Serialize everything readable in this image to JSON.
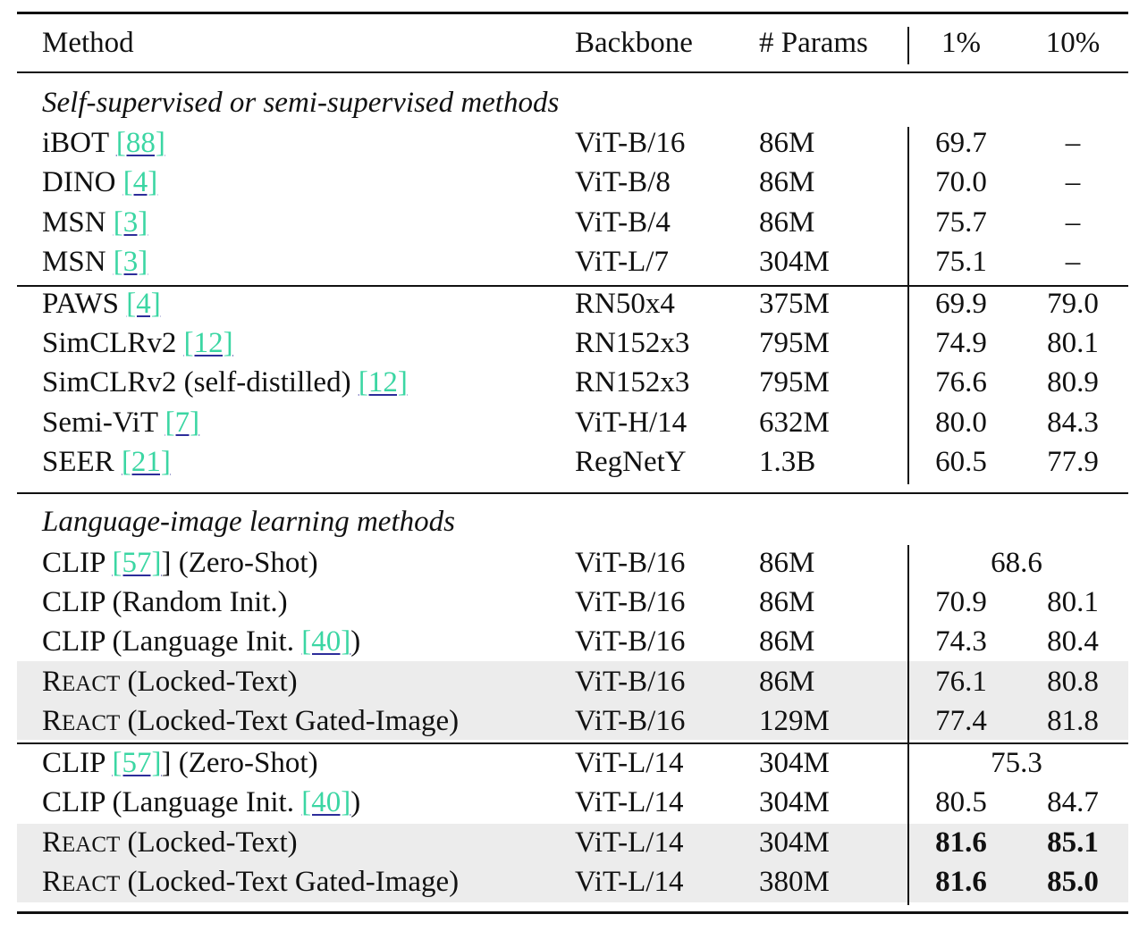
{
  "header": {
    "method": "Method",
    "backbone": "Backbone",
    "params": "# Params",
    "p1": "1%",
    "p10": "10%"
  },
  "sections": [
    "Self-supervised or semi-supervised methods",
    "Language-image learning methods"
  ],
  "rows": [
    {
      "name": "iBOT",
      "cite": "[88]",
      "suffix": "",
      "backbone": "ViT-B/16",
      "params": "86M",
      "p1": "69.7",
      "p10": "–"
    },
    {
      "name": "DINO",
      "cite": "[4]",
      "suffix": "",
      "backbone": "ViT-B/8",
      "params": "86M",
      "p1": "70.0",
      "p10": "–"
    },
    {
      "name": "MSN",
      "cite": "[3]",
      "suffix": "",
      "backbone": "ViT-B/4",
      "params": "86M",
      "p1": "75.7",
      "p10": "–"
    },
    {
      "name": "MSN",
      "cite": "[3]",
      "suffix": "",
      "backbone": "ViT-L/7",
      "params": "304M",
      "p1": "75.1",
      "p10": "–"
    },
    {
      "name": "PAWS",
      "cite": "[4]",
      "suffix": "",
      "backbone": "RN50x4",
      "params": "375M",
      "p1": "69.9",
      "p10": "79.0"
    },
    {
      "name": "SimCLRv2",
      "cite": "[12]",
      "suffix": "",
      "backbone": "RN152x3",
      "params": "795M",
      "p1": "74.9",
      "p10": "80.1"
    },
    {
      "name": "SimCLRv2 (self-distilled)",
      "cite": "[12]",
      "suffix": "",
      "backbone": "RN152x3",
      "params": "795M",
      "p1": "76.6",
      "p10": "80.9"
    },
    {
      "name": "Semi-ViT",
      "cite": "[7]",
      "suffix": "",
      "backbone": "ViT-H/14",
      "params": "632M",
      "p1": "80.0",
      "p10": "84.3"
    },
    {
      "name": "SEER",
      "cite": "[21]",
      "suffix": "",
      "backbone": "RegNetY",
      "params": "1.3B",
      "p1": "60.5",
      "p10": "77.9"
    },
    {
      "name": "CLIP",
      "cite": "[57]",
      "suffix": "] (Zero-Shot)",
      "backbone": "ViT-B/16",
      "params": "86M",
      "merged": "68.6"
    },
    {
      "name": "CLIP (Random Init.)",
      "cite": "",
      "suffix": "",
      "backbone": "ViT-B/16",
      "params": "86M",
      "p1": "70.9",
      "p10": "80.1"
    },
    {
      "name": "CLIP (Language Init.",
      "cite": "[40]",
      "suffix": ")",
      "backbone": "ViT-B/16",
      "params": "86M",
      "p1": "74.3",
      "p10": "80.4"
    },
    {
      "name_first": "R",
      "name_sc": "EACT",
      "name_rest": " (Locked-Text)",
      "backbone": "ViT-B/16",
      "params": "86M",
      "p1": "76.1",
      "p10": "80.8"
    },
    {
      "name_first": "R",
      "name_sc": "EACT",
      "name_rest": " (Locked-Text Gated-Image)",
      "backbone": "ViT-B/16",
      "params": "129M",
      "p1": "77.4",
      "p10": "81.8"
    },
    {
      "name": "CLIP",
      "cite": "[57]",
      "suffix": "] (Zero-Shot)",
      "backbone": "ViT-L/14",
      "params": "304M",
      "merged": "75.3"
    },
    {
      "name": "CLIP (Language Init.",
      "cite": "[40]",
      "suffix": ")",
      "backbone": "ViT-L/14",
      "params": "304M",
      "p1": "80.5",
      "p10": "84.7"
    },
    {
      "name_first": "R",
      "name_sc": "EACT",
      "name_rest": " (Locked-Text)",
      "backbone": "ViT-L/14",
      "params": "304M",
      "p1": "81.6",
      "p10": "85.1"
    },
    {
      "name_first": "R",
      "name_sc": "EACT",
      "name_rest": " (Locked-Text Gated-Image)",
      "backbone": "ViT-L/14",
      "params": "380M",
      "p1": "81.6",
      "p10": "85.0"
    }
  ],
  "colors": {
    "citation": "#3bd6a3",
    "citation_underline": "#2d2d9a",
    "highlight_row": "#ececec"
  }
}
